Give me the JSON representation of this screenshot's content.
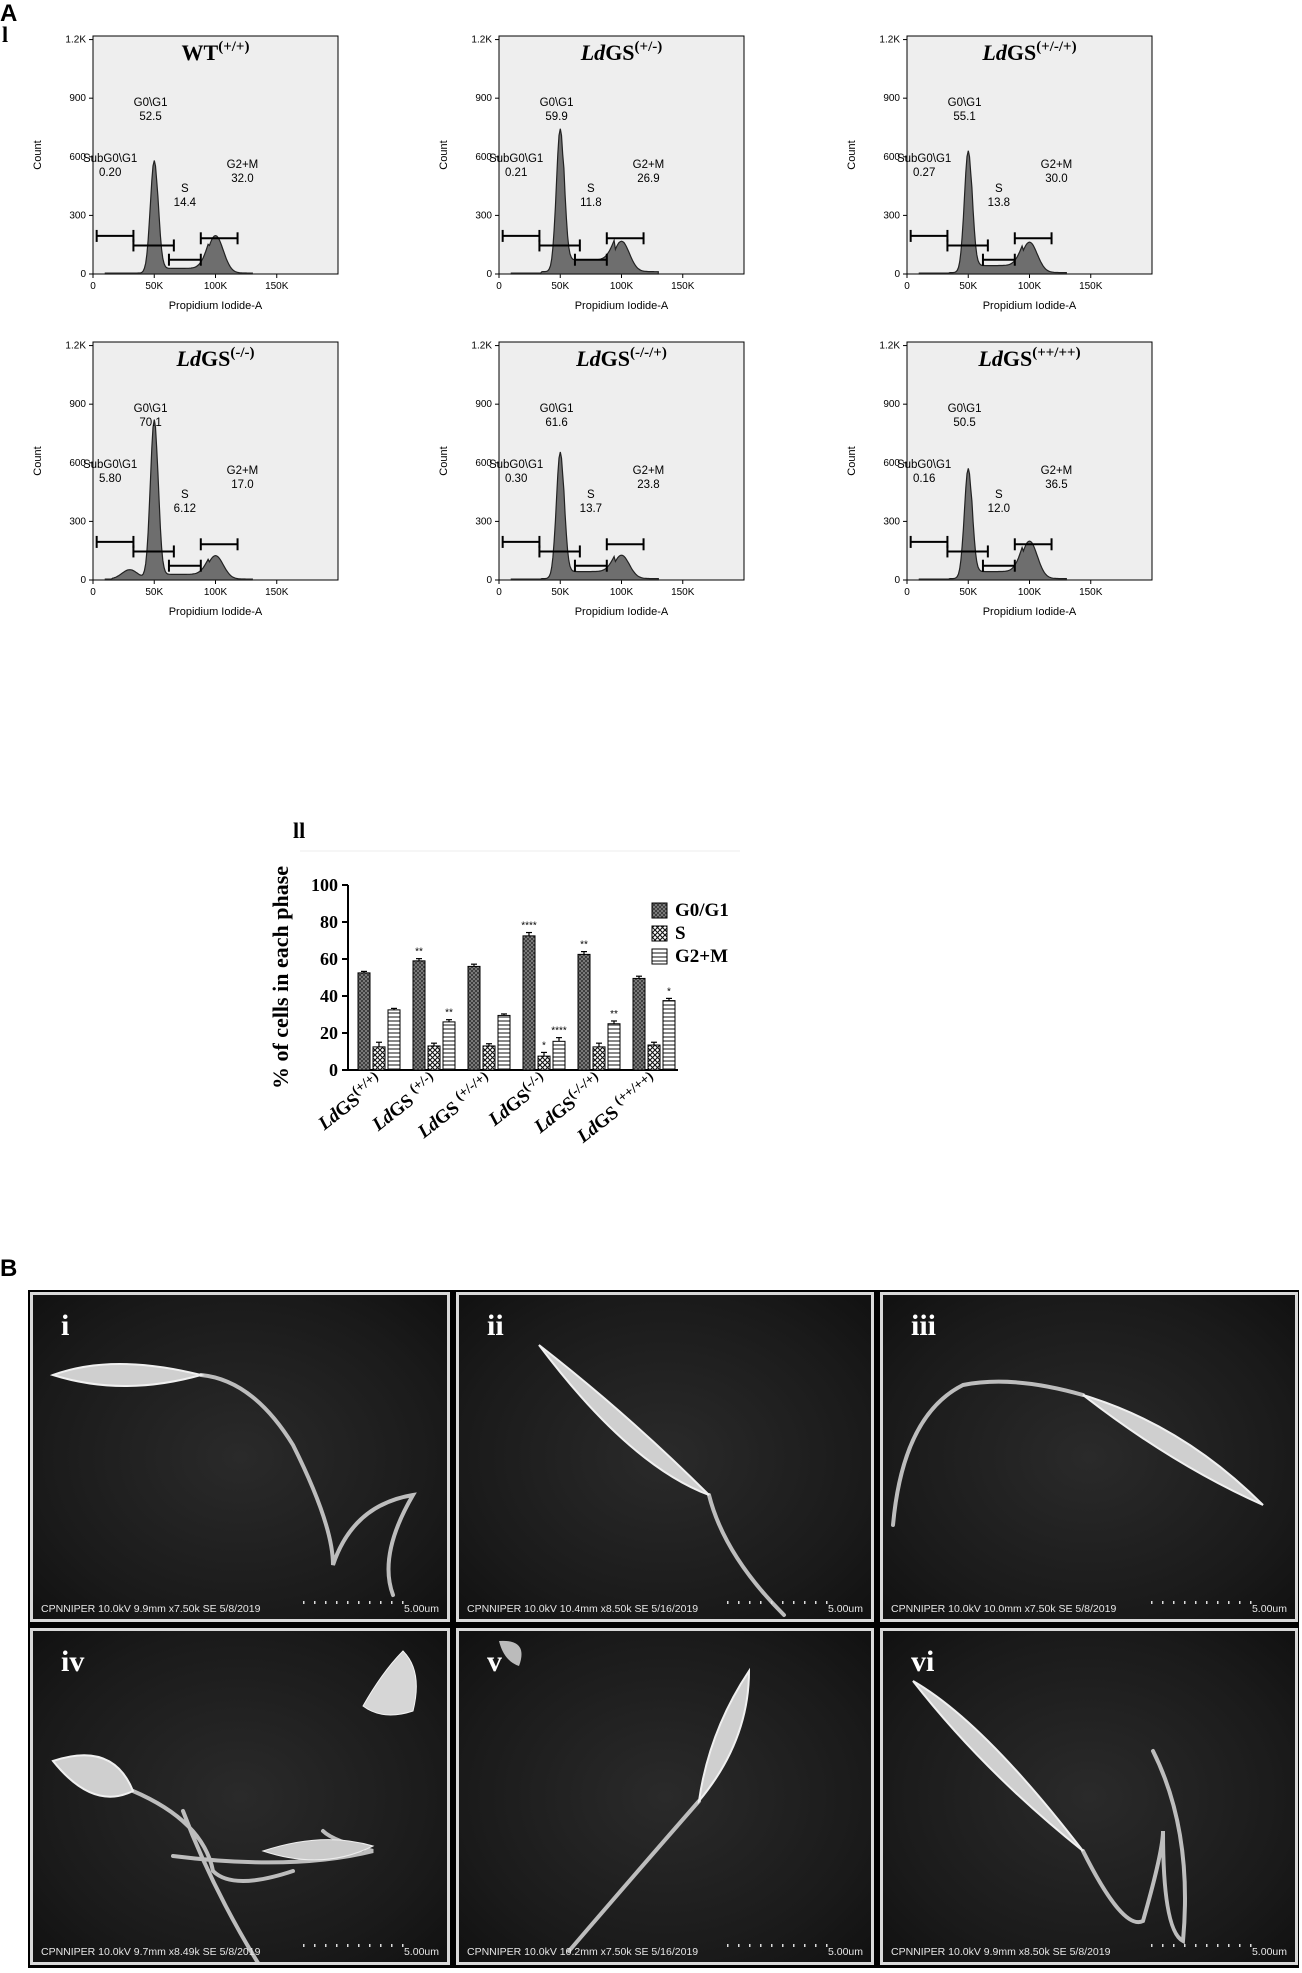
{
  "panel_labels": {
    "A": "A",
    "B": "B",
    "A_i": "l",
    "A_ii": "ll"
  },
  "histogram_axes": {
    "ylabel": "Count",
    "xlabel": "Propidium Iodide-A",
    "yticks": [
      "0",
      "300",
      "600",
      "900",
      "1.2K"
    ],
    "xticks": [
      "0",
      "50K",
      "100K",
      "150K"
    ]
  },
  "histograms": [
    {
      "title": "WT",
      "title_italic": "",
      "sup": "(+/+)",
      "gates": {
        "subg": {
          "name": "SubG0\\G1",
          "val": "0.20"
        },
        "g1": {
          "name": "G0\\G1",
          "val": "52.5"
        },
        "s": {
          "name": "S",
          "val": "14.4"
        },
        "g2": {
          "name": "G2+M",
          "val": "32.0"
        }
      }
    },
    {
      "title": "GS",
      "title_italic": "Ld",
      "sup": "(+/-)",
      "gates": {
        "subg": {
          "name": "SubG0\\G1",
          "val": "0.21"
        },
        "g1": {
          "name": "G0\\G1",
          "val": "59.9"
        },
        "s": {
          "name": "S",
          "val": "11.8"
        },
        "g2": {
          "name": "G2+M",
          "val": "26.9"
        }
      }
    },
    {
      "title": "GS",
      "title_italic": "Ld",
      "sup": "(+/-/+)",
      "gates": {
        "subg": {
          "name": "SubG0\\G1",
          "val": "0.27"
        },
        "g1": {
          "name": "G0\\G1",
          "val": "55.1"
        },
        "s": {
          "name": "S",
          "val": "13.8"
        },
        "g2": {
          "name": "G2+M",
          "val": "30.0"
        }
      }
    },
    {
      "title": "GS",
      "title_italic": "Ld",
      "sup": "(-/-)",
      "gates": {
        "subg": {
          "name": "SubG0\\G1",
          "val": "5.80"
        },
        "g1": {
          "name": "G0\\G1",
          "val": "70.1"
        },
        "s": {
          "name": "S",
          "val": "6.12"
        },
        "g2": {
          "name": "G2+M",
          "val": "17.0"
        }
      }
    },
    {
      "title": "GS",
      "title_italic": "Ld",
      "sup": "(-/-/+)",
      "gates": {
        "subg": {
          "name": "SubG0\\G1",
          "val": "0.30"
        },
        "g1": {
          "name": "G0\\G1",
          "val": "61.6"
        },
        "s": {
          "name": "S",
          "val": "13.7"
        },
        "g2": {
          "name": "G2+M",
          "val": "23.8"
        }
      }
    },
    {
      "title": "GS",
      "title_italic": "Ld",
      "sup": "(++/++)",
      "gates": {
        "subg": {
          "name": "SubG0\\G1",
          "val": "0.16"
        },
        "g1": {
          "name": "G0\\G1",
          "val": "50.5"
        },
        "s": {
          "name": "S",
          "val": "12.0"
        },
        "g2": {
          "name": "G2+M",
          "val": "36.5"
        }
      }
    }
  ],
  "chart_data": {
    "type": "bar",
    "ylabel": "% of cells in each phase",
    "ylim": [
      0,
      100
    ],
    "yticks": [
      "0",
      "20",
      "40",
      "60",
      "80",
      "100"
    ],
    "legend": "right",
    "categories": [
      {
        "it": "Ld",
        "rest": "GS",
        "sup": "(+/+)"
      },
      {
        "it": "Ld",
        "rest": "GS ",
        "sup": "(+/-)"
      },
      {
        "it": "Ld",
        "rest": "GS ",
        "sup": "(+/-/+)"
      },
      {
        "it": "Ld",
        "rest": "GS",
        "sup": "(-/-)"
      },
      {
        "it": "Ld",
        "rest": "GS",
        "sup": "(-/-/+)"
      },
      {
        "it": "Ld",
        "rest": "GS ",
        "sup": "(++/++)"
      }
    ],
    "series": [
      {
        "name": "G0/G1",
        "pattern": "dense-check",
        "values": [
          52.5,
          59.0,
          56.0,
          72.5,
          62.5,
          49.5
        ],
        "errors": [
          0.8,
          1.2,
          1.2,
          1.8,
          1.5,
          1.2
        ],
        "sig": [
          "",
          "**",
          "",
          "****",
          "**",
          ""
        ]
      },
      {
        "name": "S",
        "pattern": "check",
        "values": [
          12.5,
          13.0,
          13.0,
          7.5,
          12.5,
          13.5
        ],
        "errors": [
          2.5,
          1.5,
          1.2,
          2.0,
          2.0,
          1.5
        ],
        "sig": [
          "",
          "",
          "",
          "*",
          "",
          ""
        ]
      },
      {
        "name": "G2+M",
        "pattern": "hlines",
        "values": [
          32.5,
          26.0,
          29.5,
          15.5,
          25.0,
          37.5
        ],
        "errors": [
          0.8,
          1.2,
          0.8,
          2.0,
          1.5,
          1.2
        ],
        "sig": [
          "",
          "**",
          "",
          "****",
          "**",
          "*"
        ]
      }
    ]
  },
  "sem_panels": [
    {
      "label": "i",
      "footer_left": "CPNNIPER 10.0kV 9.9mm x7.50k SE  5/8/2019",
      "footer_right": "5.00um"
    },
    {
      "label": "ii",
      "footer_left": "CPNNIPER 10.0kV 10.4mm x8.50k SE  5/16/2019",
      "footer_right": "5.00um"
    },
    {
      "label": "iii",
      "footer_left": "CPNNIPER 10.0kV 10.0mm x7.50k SE  5/8/2019",
      "footer_right": "5.00um"
    },
    {
      "label": "iv",
      "footer_left": "CPNNIPER 10.0kV 9.7mm x8.49k SE  5/8/2019",
      "footer_right": "5.00um"
    },
    {
      "label": "v",
      "footer_left": "CPNNIPER 10.0kV 10.2mm x7.50k SE  5/16/2019",
      "footer_right": "5.00um"
    },
    {
      "label": "vi",
      "footer_left": "CPNNIPER 10.0kV 9.9mm x8.50k SE  5/8/2019",
      "footer_right": "5.00um"
    }
  ]
}
